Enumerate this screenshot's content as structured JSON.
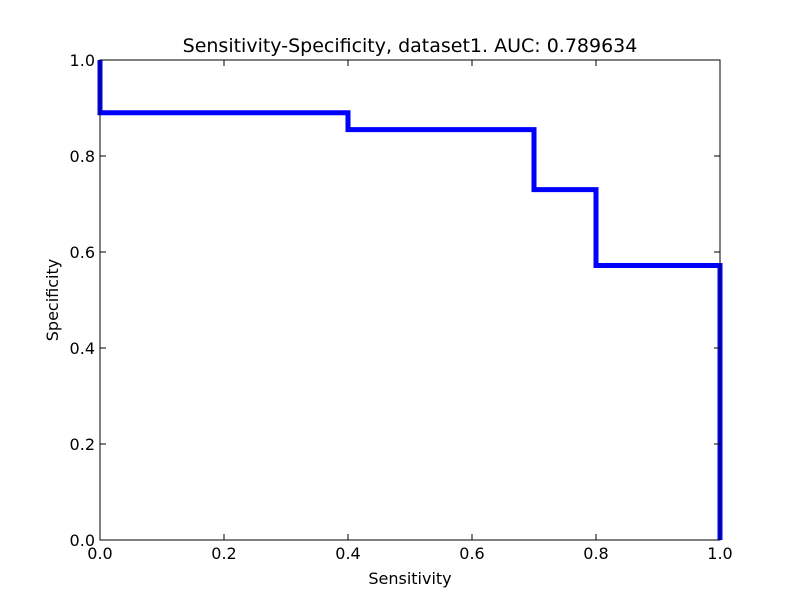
{
  "chart_data": {
    "type": "line",
    "title": "Sensitivity-Specificity, dataset1. AUC: 0.789634",
    "xlabel": "Sensitivity",
    "ylabel": "Specificity",
    "xlim": [
      0.0,
      1.0
    ],
    "ylim": [
      0.0,
      1.0
    ],
    "xticks": [
      "0.0",
      "0.2",
      "0.4",
      "0.6",
      "0.8",
      "1.0"
    ],
    "yticks": [
      "0.0",
      "0.2",
      "0.4",
      "0.6",
      "0.8",
      "1.0"
    ],
    "grid": false,
    "line_color": "#0000ff",
    "series": [
      {
        "x": [
          0.0,
          0.0,
          0.4,
          0.4,
          0.7,
          0.7,
          0.8,
          0.8,
          1.0,
          1.0
        ],
        "y": [
          1.0,
          0.89,
          0.89,
          0.855,
          0.855,
          0.73,
          0.73,
          0.572,
          0.572,
          0.0
        ]
      }
    ]
  }
}
